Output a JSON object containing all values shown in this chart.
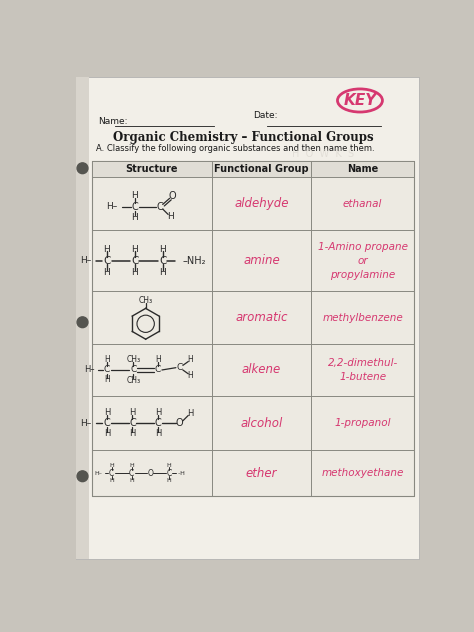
{
  "title": "Organic Chemistry – Functional Groups",
  "subtitle": "A. Classify the following organic substances and then name them.",
  "name_label": "Name:",
  "date_label": "Date:",
  "key_text": "KEY",
  "col_headers": [
    "Structure",
    "Functional Group",
    "Name"
  ],
  "fg_texts": [
    "aldehyde",
    "amine",
    "aromatic",
    "alkene",
    "alcohol",
    "ether"
  ],
  "name_texts": [
    "ethanal",
    "1-Amino propane\nor\npropylamine",
    "methylbenzene",
    "2,2-dimethul-\n1-butene",
    "1-propanol",
    "methoxyethane"
  ],
  "bg_color": "#c8c4bc",
  "paper_color": "#f2efe8",
  "table_cell_color": "#edeae2",
  "header_bg": "#e0ddd5",
  "text_color": "#1a1a1a",
  "pink_color": "#d63870",
  "bond_color": "#2a2a2a",
  "grid_color": "#888880"
}
